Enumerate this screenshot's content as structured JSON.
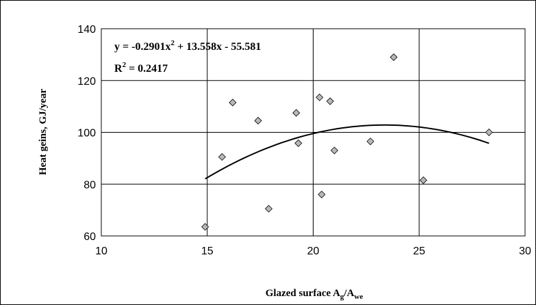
{
  "chart_data": {
    "type": "scatter",
    "xlabel": {
      "main": "Glazed surface A",
      "sub1": "g",
      "mid": "/A",
      "sub2": "we"
    },
    "ylabel": "Heat geins, GJ/year",
    "xlim": [
      10,
      30
    ],
    "ylim": [
      60,
      140
    ],
    "xticks": [
      "10",
      "15",
      "20",
      "25",
      "30"
    ],
    "yticks": [
      "60",
      "80",
      "100",
      "120",
      "140"
    ],
    "grid": true,
    "legend": "none",
    "marker_color": "#b8b8b8",
    "points": [
      {
        "x": 14.9,
        "y": 63.5
      },
      {
        "x": 15.7,
        "y": 90.5
      },
      {
        "x": 16.2,
        "y": 111.5
      },
      {
        "x": 17.4,
        "y": 104.5
      },
      {
        "x": 17.9,
        "y": 70.5
      },
      {
        "x": 19.2,
        "y": 107.5
      },
      {
        "x": 19.3,
        "y": 95.8
      },
      {
        "x": 20.3,
        "y": 113.5
      },
      {
        "x": 20.4,
        "y": 76.0
      },
      {
        "x": 20.8,
        "y": 112.0
      },
      {
        "x": 21.0,
        "y": 93.0
      },
      {
        "x": 22.7,
        "y": 96.5
      },
      {
        "x": 23.8,
        "y": 129.0
      },
      {
        "x": 25.2,
        "y": 81.5
      },
      {
        "x": 28.3,
        "y": 100.0
      }
    ],
    "trendline": {
      "type": "polynomial",
      "coefficients": [
        -0.2901,
        13.558,
        -55.581
      ],
      "x_range": [
        14.9,
        28.3
      ],
      "equation": {
        "lhs": "y = -0.2901x",
        "exp": "2",
        "rhs": " + 13.558x - 55.581"
      },
      "r_squared": {
        "lhs": "R",
        "exp": "2",
        "rhs": " = 0.2417"
      }
    }
  }
}
